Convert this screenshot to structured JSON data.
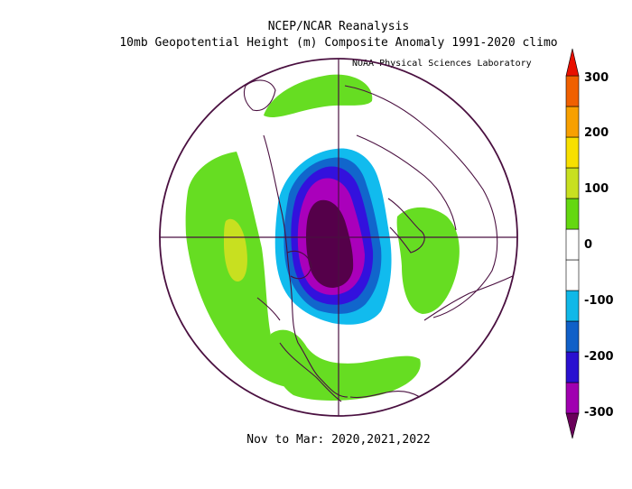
{
  "title": {
    "line1": "NCEP/NCAR Reanalysis",
    "line2": "10mb Geopotential Height (m) Composite Anomaly 1991-2020 climo",
    "credit": "NOAA Physical Sciences Laboratory"
  },
  "footer": "Nov to Mar: 2020,2021,2022",
  "colorbar": {
    "labels": [
      "300",
      "200",
      "100",
      "0",
      "-100",
      "-200",
      "-300"
    ],
    "colors": [
      "#6a005a",
      "#a000b0",
      "#2a10d0",
      "#1060c8",
      "#10b8e8",
      "#ffffff",
      "#ffffff",
      "#64d810",
      "#c8e020",
      "#f8e000",
      "#f8a000",
      "#f06000",
      "#e81000"
    ]
  },
  "map": {
    "projection": "north-polar-stereographic",
    "anomaly_colors": {
      "green": "#66dd22",
      "yellow_green": "#c8e020",
      "cyan": "#11bbee",
      "blue": "#1166cc",
      "indigo": "#3311dd",
      "magenta": "#aa00bb",
      "dark_purple": "#55004a",
      "outline": "#4a1040"
    }
  }
}
